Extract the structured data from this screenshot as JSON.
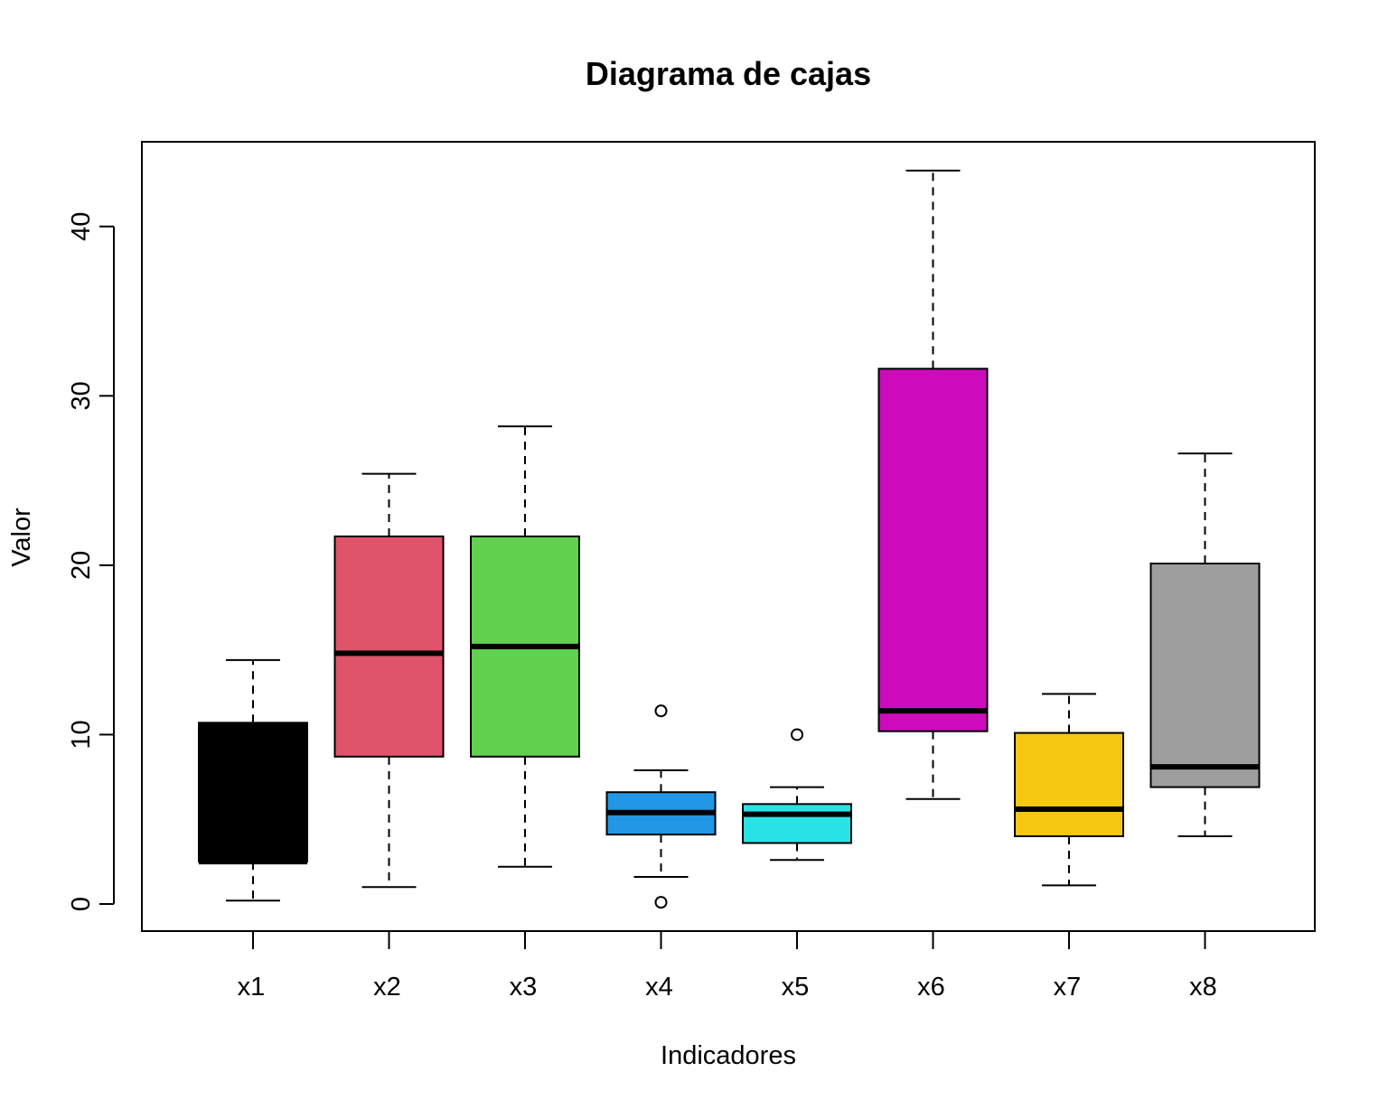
{
  "chart_data": {
    "type": "boxplot",
    "title": "Diagrama de cajas",
    "xlabel": "Indicadores",
    "ylabel": "Valor",
    "ylim": [
      -1.6,
      45
    ],
    "yticks": [
      "0",
      "10",
      "20",
      "30",
      "40"
    ],
    "ytick_values": [
      0,
      10,
      20,
      30,
      40
    ],
    "grid": false,
    "categories": [
      "x1",
      "x2",
      "x3",
      "x4",
      "x5",
      "x6",
      "x7",
      "x8"
    ],
    "boxes": [
      {
        "name": "x1",
        "color": "#000000",
        "whisker_low": 0.2,
        "q1": 2.5,
        "median": 2.5,
        "q3": 10.7,
        "whisker_high": 14.4,
        "outliers": []
      },
      {
        "name": "x2",
        "color": "#DF536B",
        "whisker_low": 1.0,
        "q1": 8.7,
        "median": 14.8,
        "q3": 21.7,
        "whisker_high": 25.4,
        "outliers": []
      },
      {
        "name": "x3",
        "color": "#61D04F",
        "whisker_low": 2.2,
        "q1": 8.7,
        "median": 15.2,
        "q3": 21.7,
        "whisker_high": 28.2,
        "outliers": []
      },
      {
        "name": "x4",
        "color": "#2297E6",
        "whisker_low": 1.6,
        "q1": 4.1,
        "median": 5.4,
        "q3": 6.6,
        "whisker_high": 7.9,
        "outliers": [
          0.1,
          11.4
        ]
      },
      {
        "name": "x5",
        "color": "#28E2E5",
        "whisker_low": 2.6,
        "q1": 3.6,
        "median": 5.3,
        "q3": 5.9,
        "whisker_high": 6.9,
        "outliers": [
          10.0
        ]
      },
      {
        "name": "x6",
        "color": "#CD0BBC",
        "whisker_low": 6.2,
        "q1": 10.2,
        "median": 11.4,
        "q3": 31.6,
        "whisker_high": 43.3,
        "outliers": []
      },
      {
        "name": "x7",
        "color": "#F5C710",
        "whisker_low": 1.1,
        "q1": 4.0,
        "median": 5.6,
        "q3": 10.1,
        "whisker_high": 12.4,
        "outliers": []
      },
      {
        "name": "x8",
        "color": "#9E9E9E",
        "whisker_low": 4.0,
        "q1": 6.9,
        "median": 8.1,
        "q3": 20.1,
        "whisker_high": 26.6,
        "outliers": []
      }
    ]
  }
}
